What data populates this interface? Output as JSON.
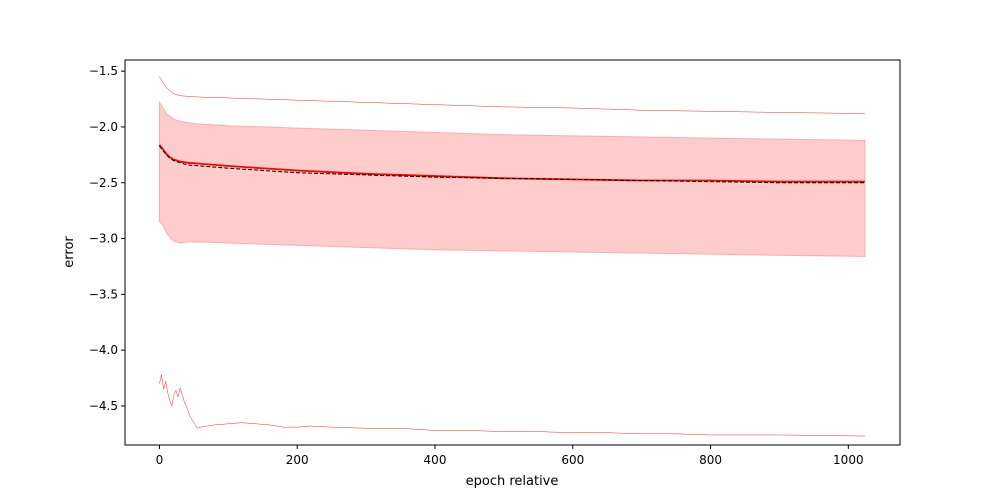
{
  "chart_data": {
    "type": "line",
    "title": "",
    "xlabel": "epoch relative",
    "ylabel": "error",
    "xlim": [
      -50,
      1075
    ],
    "ylim": [
      -4.85,
      -1.4
    ],
    "x_ticks": [
      0,
      200,
      400,
      600,
      800,
      1000
    ],
    "x_tick_labels": [
      "0",
      "200",
      "400",
      "600",
      "800",
      "1000"
    ],
    "y_ticks": [
      -1.5,
      -2.0,
      -2.5,
      -3.0,
      -3.5,
      -4.0,
      -4.5
    ],
    "y_tick_labels": [
      "−1.5",
      "−2.0",
      "−2.5",
      "−3.0",
      "−3.5",
      "−4.0",
      "−4.5"
    ],
    "grid": false,
    "legend": "none",
    "colors": {
      "main": "#ff0000",
      "band_fill": "#ffcccc",
      "band_edge": "#ffaaaa",
      "dashed": "#000000",
      "envelope": "#ff0000"
    },
    "series": [
      {
        "role": "mean",
        "style": "solid",
        "points": [
          [
            0,
            -2.16
          ],
          [
            5,
            -2.2
          ],
          [
            10,
            -2.24
          ],
          [
            15,
            -2.27
          ],
          [
            20,
            -2.29
          ],
          [
            30,
            -2.31
          ],
          [
            40,
            -2.32
          ],
          [
            60,
            -2.33
          ],
          [
            80,
            -2.34
          ],
          [
            100,
            -2.35
          ],
          [
            150,
            -2.37
          ],
          [
            200,
            -2.39
          ],
          [
            300,
            -2.42
          ],
          [
            400,
            -2.44
          ],
          [
            500,
            -2.46
          ],
          [
            600,
            -2.47
          ],
          [
            700,
            -2.48
          ],
          [
            800,
            -2.48
          ],
          [
            900,
            -2.49
          ],
          [
            1024,
            -2.49
          ]
        ]
      },
      {
        "role": "median",
        "style": "dashed",
        "points": [
          [
            0,
            -2.17
          ],
          [
            5,
            -2.21
          ],
          [
            10,
            -2.25
          ],
          [
            15,
            -2.28
          ],
          [
            20,
            -2.3
          ],
          [
            30,
            -2.32
          ],
          [
            40,
            -2.34
          ],
          [
            60,
            -2.35
          ],
          [
            80,
            -2.36
          ],
          [
            100,
            -2.37
          ],
          [
            150,
            -2.39
          ],
          [
            200,
            -2.41
          ],
          [
            300,
            -2.43
          ],
          [
            400,
            -2.45
          ],
          [
            500,
            -2.46
          ],
          [
            600,
            -2.47
          ],
          [
            700,
            -2.48
          ],
          [
            800,
            -2.49
          ],
          [
            900,
            -2.5
          ],
          [
            1024,
            -2.5
          ]
        ]
      },
      {
        "role": "envelope_max",
        "style": "thin",
        "points": [
          [
            0,
            -1.55
          ],
          [
            5,
            -1.6
          ],
          [
            10,
            -1.65
          ],
          [
            20,
            -1.7
          ],
          [
            30,
            -1.72
          ],
          [
            50,
            -1.73
          ],
          [
            100,
            -1.74
          ],
          [
            200,
            -1.76
          ],
          [
            300,
            -1.78
          ],
          [
            400,
            -1.8
          ],
          [
            500,
            -1.82
          ],
          [
            600,
            -1.83
          ],
          [
            700,
            -1.85
          ],
          [
            800,
            -1.86
          ],
          [
            900,
            -1.87
          ],
          [
            1024,
            -1.88
          ]
        ]
      },
      {
        "role": "envelope_min",
        "style": "thin",
        "points": [
          [
            0,
            -4.3
          ],
          [
            3,
            -4.22
          ],
          [
            6,
            -4.35
          ],
          [
            9,
            -4.28
          ],
          [
            12,
            -4.38
          ],
          [
            15,
            -4.45
          ],
          [
            18,
            -4.5
          ],
          [
            21,
            -4.4
          ],
          [
            24,
            -4.36
          ],
          [
            27,
            -4.42
          ],
          [
            30,
            -4.34
          ],
          [
            33,
            -4.4
          ],
          [
            36,
            -4.46
          ],
          [
            40,
            -4.52
          ],
          [
            45,
            -4.6
          ],
          [
            50,
            -4.65
          ],
          [
            55,
            -4.7
          ],
          [
            60,
            -4.69
          ],
          [
            70,
            -4.68
          ],
          [
            80,
            -4.67
          ],
          [
            100,
            -4.66
          ],
          [
            120,
            -4.65
          ],
          [
            140,
            -4.66
          ],
          [
            160,
            -4.67
          ],
          [
            180,
            -4.69
          ],
          [
            200,
            -4.69
          ],
          [
            220,
            -4.68
          ],
          [
            250,
            -4.69
          ],
          [
            300,
            -4.7
          ],
          [
            350,
            -4.7
          ],
          [
            400,
            -4.72
          ],
          [
            450,
            -4.72
          ],
          [
            500,
            -4.73
          ],
          [
            550,
            -4.73
          ],
          [
            600,
            -4.74
          ],
          [
            650,
            -4.74
          ],
          [
            700,
            -4.75
          ],
          [
            750,
            -4.75
          ],
          [
            800,
            -4.76
          ],
          [
            900,
            -4.76
          ],
          [
            1024,
            -4.77
          ]
        ]
      }
    ],
    "band": {
      "upper": [
        [
          0,
          -1.78
        ],
        [
          5,
          -1.83
        ],
        [
          10,
          -1.88
        ],
        [
          20,
          -1.93
        ],
        [
          30,
          -1.95
        ],
        [
          50,
          -1.97
        ],
        [
          100,
          -1.99
        ],
        [
          200,
          -2.01
        ],
        [
          300,
          -2.03
        ],
        [
          400,
          -2.05
        ],
        [
          500,
          -2.07
        ],
        [
          600,
          -2.08
        ],
        [
          700,
          -2.09
        ],
        [
          800,
          -2.1
        ],
        [
          900,
          -2.11
        ],
        [
          1024,
          -2.12
        ]
      ],
      "lower": [
        [
          0,
          -2.85
        ],
        [
          5,
          -2.88
        ],
        [
          10,
          -2.95
        ],
        [
          20,
          -3.02
        ],
        [
          30,
          -3.04
        ],
        [
          40,
          -3.03
        ],
        [
          60,
          -3.03
        ],
        [
          100,
          -3.04
        ],
        [
          200,
          -3.06
        ],
        [
          300,
          -3.08
        ],
        [
          400,
          -3.1
        ],
        [
          500,
          -3.11
        ],
        [
          600,
          -3.12
        ],
        [
          700,
          -3.13
        ],
        [
          800,
          -3.14
        ],
        [
          900,
          -3.15
        ],
        [
          1024,
          -3.16
        ]
      ]
    }
  }
}
